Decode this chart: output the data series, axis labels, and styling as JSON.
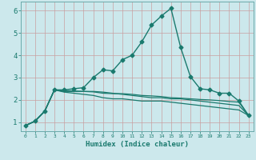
{
  "xlabel": "Humidex (Indice chaleur)",
  "ylabel": "",
  "bg_color": "#cce8ec",
  "grid_color": "#b0d4d8",
  "line_color": "#1a7a6e",
  "spine_color": "#6aaaaa",
  "xlim": [
    -0.5,
    23.5
  ],
  "ylim": [
    0.6,
    6.4
  ],
  "xticks": [
    0,
    1,
    2,
    3,
    4,
    5,
    6,
    7,
    8,
    9,
    10,
    11,
    12,
    13,
    14,
    15,
    16,
    17,
    18,
    19,
    20,
    21,
    22,
    23
  ],
  "yticks": [
    1,
    2,
    3,
    4,
    5,
    6
  ],
  "series": [
    {
      "x": [
        0,
        1,
        2,
        3,
        4,
        5,
        6,
        7,
        8,
        9,
        10,
        11,
        12,
        13,
        14,
        15,
        16,
        17,
        18,
        19,
        20,
        21,
        22,
        23
      ],
      "y": [
        0.85,
        1.05,
        1.5,
        2.45,
        2.45,
        2.5,
        2.55,
        3.0,
        3.35,
        3.3,
        3.8,
        4.0,
        4.6,
        5.35,
        5.75,
        6.1,
        4.35,
        3.05,
        2.5,
        2.45,
        2.3,
        2.3,
        1.95,
        1.3
      ],
      "marker": "D",
      "markersize": 2.5,
      "linewidth": 1.0,
      "linestyle": "-"
    },
    {
      "x": [
        0,
        1,
        2,
        3,
        4,
        5,
        6,
        7,
        8,
        9,
        10,
        11,
        12,
        13,
        14,
        15,
        16,
        17,
        18,
        19,
        20,
        21,
        22,
        23
      ],
      "y": [
        0.85,
        1.05,
        1.5,
        2.45,
        2.42,
        2.4,
        2.38,
        2.36,
        2.3,
        2.28,
        2.28,
        2.25,
        2.2,
        2.18,
        2.15,
        2.1,
        2.08,
        2.05,
        2.02,
        2.0,
        1.97,
        1.93,
        1.9,
        1.3
      ],
      "marker": null,
      "markersize": 0,
      "linewidth": 0.9,
      "linestyle": "-"
    },
    {
      "x": [
        0,
        1,
        2,
        3,
        4,
        5,
        6,
        7,
        8,
        9,
        10,
        11,
        12,
        13,
        14,
        15,
        16,
        17,
        18,
        19,
        20,
        21,
        22,
        23
      ],
      "y": [
        0.85,
        1.05,
        1.5,
        2.45,
        2.38,
        2.38,
        2.38,
        2.38,
        2.35,
        2.3,
        2.25,
        2.2,
        2.15,
        2.1,
        2.1,
        2.05,
        2.05,
        2.0,
        1.95,
        1.9,
        1.85,
        1.8,
        1.75,
        1.3
      ],
      "marker": null,
      "markersize": 0,
      "linewidth": 0.9,
      "linestyle": "-"
    },
    {
      "x": [
        0,
        1,
        2,
        3,
        4,
        5,
        6,
        7,
        8,
        9,
        10,
        11,
        12,
        13,
        14,
        15,
        16,
        17,
        18,
        19,
        20,
        21,
        22,
        23
      ],
      "y": [
        0.85,
        1.05,
        1.5,
        2.45,
        2.35,
        2.3,
        2.25,
        2.2,
        2.1,
        2.05,
        2.05,
        2.0,
        1.95,
        1.95,
        1.95,
        1.9,
        1.85,
        1.8,
        1.75,
        1.7,
        1.65,
        1.6,
        1.55,
        1.3
      ],
      "marker": null,
      "markersize": 0,
      "linewidth": 0.9,
      "linestyle": "-"
    }
  ]
}
